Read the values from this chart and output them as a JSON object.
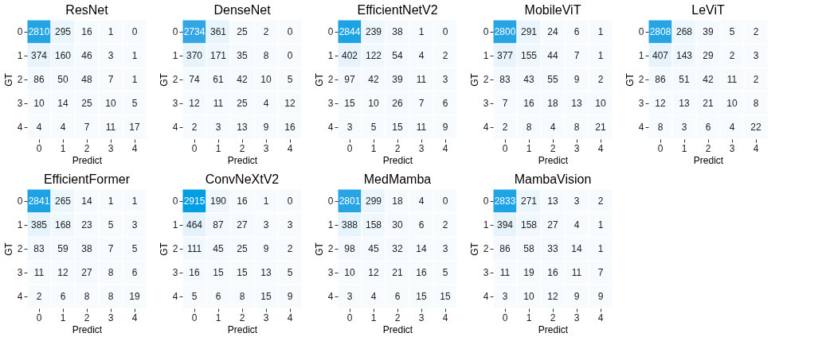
{
  "chart_data": [
    {
      "type": "heatmap",
      "title": "ResNet",
      "xlabel": "Predict",
      "ylabel": "GT",
      "categories": [
        "0",
        "1",
        "2",
        "3",
        "4"
      ],
      "y_categories": [
        "0",
        "1",
        "2",
        "3",
        "4"
      ],
      "data_labels": true,
      "cells": [
        [
          2810,
          295,
          16,
          1,
          0
        ],
        [
          374,
          160,
          46,
          3,
          1
        ],
        [
          86,
          50,
          48,
          7,
          1
        ],
        [
          10,
          14,
          25,
          10,
          5
        ],
        [
          4,
          4,
          7,
          11,
          17
        ]
      ]
    },
    {
      "type": "heatmap",
      "title": "DenseNet",
      "xlabel": "Predict",
      "ylabel": "GT",
      "categories": [
        "0",
        "1",
        "2",
        "3",
        "4"
      ],
      "y_categories": [
        "0",
        "1",
        "2",
        "3",
        "4"
      ],
      "data_labels": true,
      "cells": [
        [
          2734,
          361,
          25,
          2,
          0
        ],
        [
          370,
          171,
          35,
          8,
          0
        ],
        [
          74,
          61,
          42,
          10,
          5
        ],
        [
          12,
          11,
          25,
          4,
          12
        ],
        [
          2,
          3,
          13,
          9,
          16
        ]
      ]
    },
    {
      "type": "heatmap",
      "title": "EfficientNetV2",
      "xlabel": "Predict",
      "ylabel": "GT",
      "categories": [
        "0",
        "1",
        "2",
        "3",
        "4"
      ],
      "y_categories": [
        "0",
        "1",
        "2",
        "3",
        "4"
      ],
      "data_labels": true,
      "cells": [
        [
          2844,
          239,
          38,
          1,
          0
        ],
        [
          402,
          122,
          54,
          4,
          2
        ],
        [
          97,
          42,
          39,
          11,
          3
        ],
        [
          15,
          10,
          26,
          7,
          6
        ],
        [
          3,
          5,
          15,
          11,
          9
        ]
      ]
    },
    {
      "type": "heatmap",
      "title": "MobileViT",
      "xlabel": "Predict",
      "ylabel": "GT",
      "categories": [
        "0",
        "1",
        "2",
        "3",
        "4"
      ],
      "y_categories": [
        "0",
        "1",
        "2",
        "3",
        "4"
      ],
      "data_labels": true,
      "cells": [
        [
          2800,
          291,
          24,
          6,
          1
        ],
        [
          377,
          155,
          44,
          7,
          1
        ],
        [
          83,
          43,
          55,
          9,
          2
        ],
        [
          7,
          16,
          18,
          13,
          10
        ],
        [
          2,
          8,
          4,
          8,
          21
        ]
      ]
    },
    {
      "type": "heatmap",
      "title": "LeViT",
      "xlabel": "Predict",
      "ylabel": "GT",
      "categories": [
        "0",
        "1",
        "2",
        "3",
        "4"
      ],
      "y_categories": [
        "0",
        "1",
        "2",
        "3",
        "4"
      ],
      "data_labels": true,
      "cells": [
        [
          2808,
          268,
          39,
          5,
          2
        ],
        [
          407,
          143,
          29,
          2,
          3
        ],
        [
          86,
          51,
          42,
          11,
          2
        ],
        [
          12,
          13,
          21,
          10,
          8
        ],
        [
          8,
          3,
          6,
          4,
          22
        ]
      ]
    },
    {
      "type": "heatmap",
      "title": "EfficientFormer",
      "xlabel": "Predict",
      "ylabel": "GT",
      "categories": [
        "0",
        "1",
        "2",
        "3",
        "4"
      ],
      "y_categories": [
        "0",
        "1",
        "2",
        "3",
        "4"
      ],
      "data_labels": true,
      "cells": [
        [
          2841,
          265,
          14,
          1,
          1
        ],
        [
          385,
          168,
          23,
          5,
          3
        ],
        [
          83,
          59,
          38,
          7,
          5
        ],
        [
          11,
          12,
          27,
          8,
          6
        ],
        [
          2,
          6,
          8,
          8,
          19
        ]
      ]
    },
    {
      "type": "heatmap",
      "title": "ConvNeXtV2",
      "xlabel": "Predict",
      "ylabel": "GT",
      "categories": [
        "0",
        "1",
        "2",
        "3",
        "4"
      ],
      "y_categories": [
        "0",
        "1",
        "2",
        "3",
        "4"
      ],
      "data_labels": true,
      "cells": [
        [
          2915,
          190,
          16,
          1,
          0
        ],
        [
          464,
          87,
          27,
          3,
          3
        ],
        [
          111,
          45,
          25,
          9,
          2
        ],
        [
          16,
          15,
          15,
          13,
          5
        ],
        [
          5,
          6,
          8,
          15,
          9
        ]
      ]
    },
    {
      "type": "heatmap",
      "title": "MedMamba",
      "xlabel": "Predict",
      "ylabel": "GT",
      "categories": [
        "0",
        "1",
        "2",
        "3",
        "4"
      ],
      "y_categories": [
        "0",
        "1",
        "2",
        "3",
        "4"
      ],
      "data_labels": true,
      "cells": [
        [
          2801,
          299,
          18,
          4,
          0
        ],
        [
          388,
          158,
          30,
          6,
          2
        ],
        [
          98,
          45,
          32,
          14,
          3
        ],
        [
          10,
          12,
          21,
          16,
          5
        ],
        [
          3,
          4,
          6,
          15,
          15
        ]
      ]
    },
    {
      "type": "heatmap",
      "title": "MambaVision",
      "xlabel": "Predict",
      "ylabel": "GT",
      "categories": [
        "0",
        "1",
        "2",
        "3",
        "4"
      ],
      "y_categories": [
        "0",
        "1",
        "2",
        "3",
        "4"
      ],
      "data_labels": true,
      "cells": [
        [
          2833,
          271,
          13,
          3,
          2
        ],
        [
          394,
          158,
          27,
          4,
          1
        ],
        [
          86,
          58,
          33,
          14,
          1
        ],
        [
          11,
          19,
          16,
          11,
          7
        ],
        [
          3,
          10,
          12,
          9,
          9
        ]
      ]
    }
  ]
}
